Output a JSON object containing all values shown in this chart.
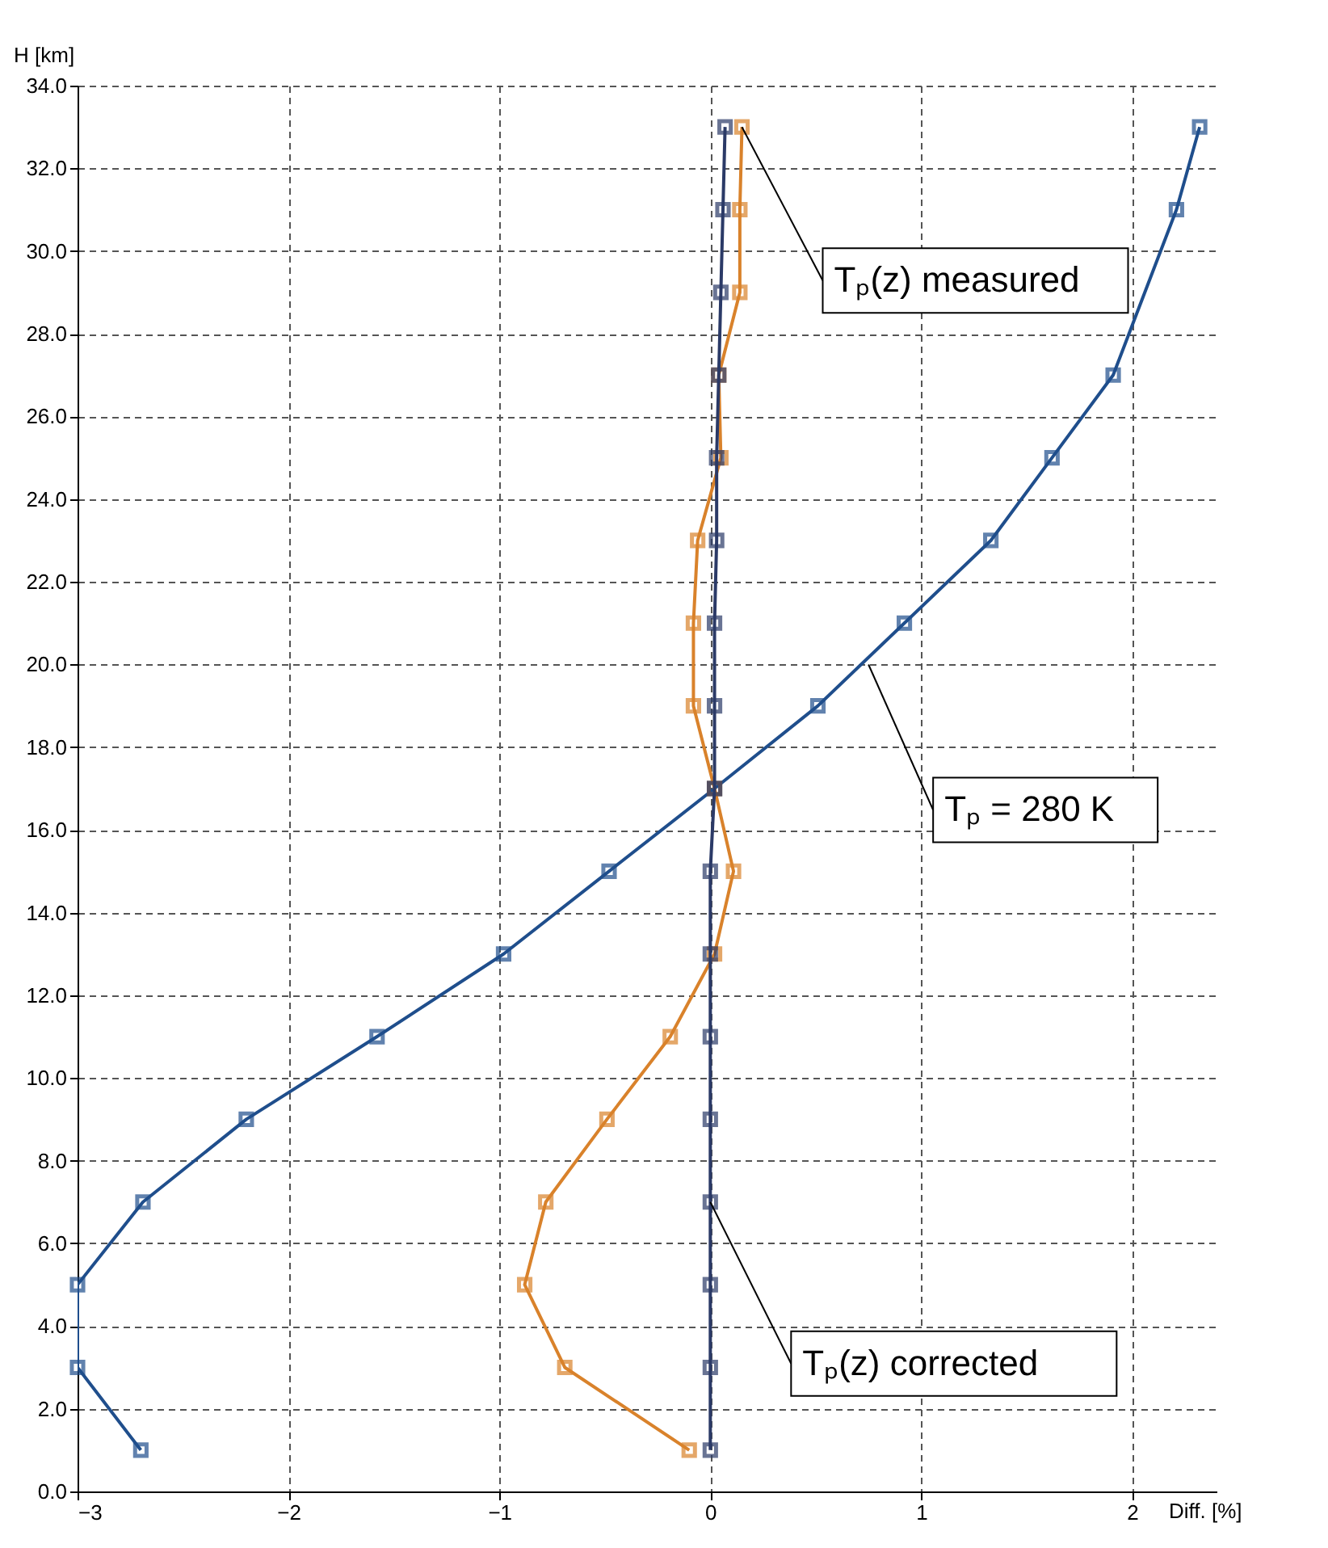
{
  "chart_data": {
    "type": "line",
    "xlabel": "Diff. [%]",
    "ylabel": "H [km]",
    "xlim": [
      -3,
      2.4
    ],
    "xticks": [
      -3,
      -2,
      -1,
      0,
      1,
      2
    ],
    "ylim": [
      0,
      34
    ],
    "yticks": [
      {
        "value": 0,
        "label": "0.0"
      },
      {
        "value": 2,
        "label": "2.0"
      },
      {
        "value": 4,
        "label": "4.0"
      },
      {
        "value": 6,
        "label": "6.0"
      },
      {
        "value": 8,
        "label": "8.0"
      },
      {
        "value": 10,
        "label": "10.0"
      },
      {
        "value": 12,
        "label": "12.0"
      },
      {
        "value": 14,
        "label": "14.0"
      },
      {
        "value": 16,
        "label": "16.0"
      },
      {
        "value": 18,
        "label": "18.0"
      },
      {
        "value": 20,
        "label": "20.0"
      },
      {
        "value": 22,
        "label": "22.0"
      },
      {
        "value": 24,
        "label": "24.0"
      },
      {
        "value": 26,
        "label": "26.0"
      },
      {
        "value": 28,
        "label": "28.0"
      },
      {
        "value": 30,
        "label": "30.0"
      },
      {
        "value": 32,
        "label": "32.0"
      },
      {
        "value": 34,
        "label": "34.0"
      }
    ],
    "grid": true,
    "marker": "square",
    "line_style": "solid",
    "series": [
      {
        "color": "#1f4e8c",
        "x": [
          -2.7,
          -3.0,
          -3.0,
          -2.69,
          -2.2,
          -1.58,
          -0.98,
          -0.48,
          0.02,
          0.51,
          0.92,
          1.33,
          1.62,
          1.91,
          2.21,
          2.32
        ],
        "values": [
          1,
          3,
          5,
          7,
          9,
          11,
          13,
          15,
          17,
          19,
          21,
          23,
          25,
          27,
          31,
          33
        ]
      },
      {
        "color": "#d9822b",
        "x": [
          -0.1,
          -0.69,
          -0.88,
          -0.78,
          -0.49,
          -0.19,
          0.02,
          0.11,
          0.02,
          -0.08,
          -0.08,
          -0.06,
          0.05,
          0.04,
          0.14,
          0.14,
          0.15
        ],
        "values": [
          1,
          3,
          5,
          7,
          9,
          11,
          13,
          15,
          17,
          19,
          21,
          23,
          25,
          27,
          29,
          31,
          33
        ]
      },
      {
        "color": "#2b3a67",
        "x": [
          0,
          0,
          0,
          0,
          0,
          0,
          0,
          0,
          0.02,
          0.02,
          0.02,
          0.03,
          0.03,
          0.04,
          0.05,
          0.06,
          0.07
        ],
        "values": [
          1,
          3,
          5,
          7,
          9,
          11,
          13,
          15,
          17,
          19,
          21,
          23,
          25,
          27,
          29,
          31,
          33
        ]
      }
    ],
    "annotations": [
      {
        "text": "Tₚ(z) measured",
        "x": 0.15,
        "y": 33
      },
      {
        "text": "Tₚ = 280 K",
        "x": 0.75,
        "y": 20
      },
      {
        "text": "Tₚ(z) corrected",
        "x": 0,
        "y": 7
      }
    ]
  }
}
